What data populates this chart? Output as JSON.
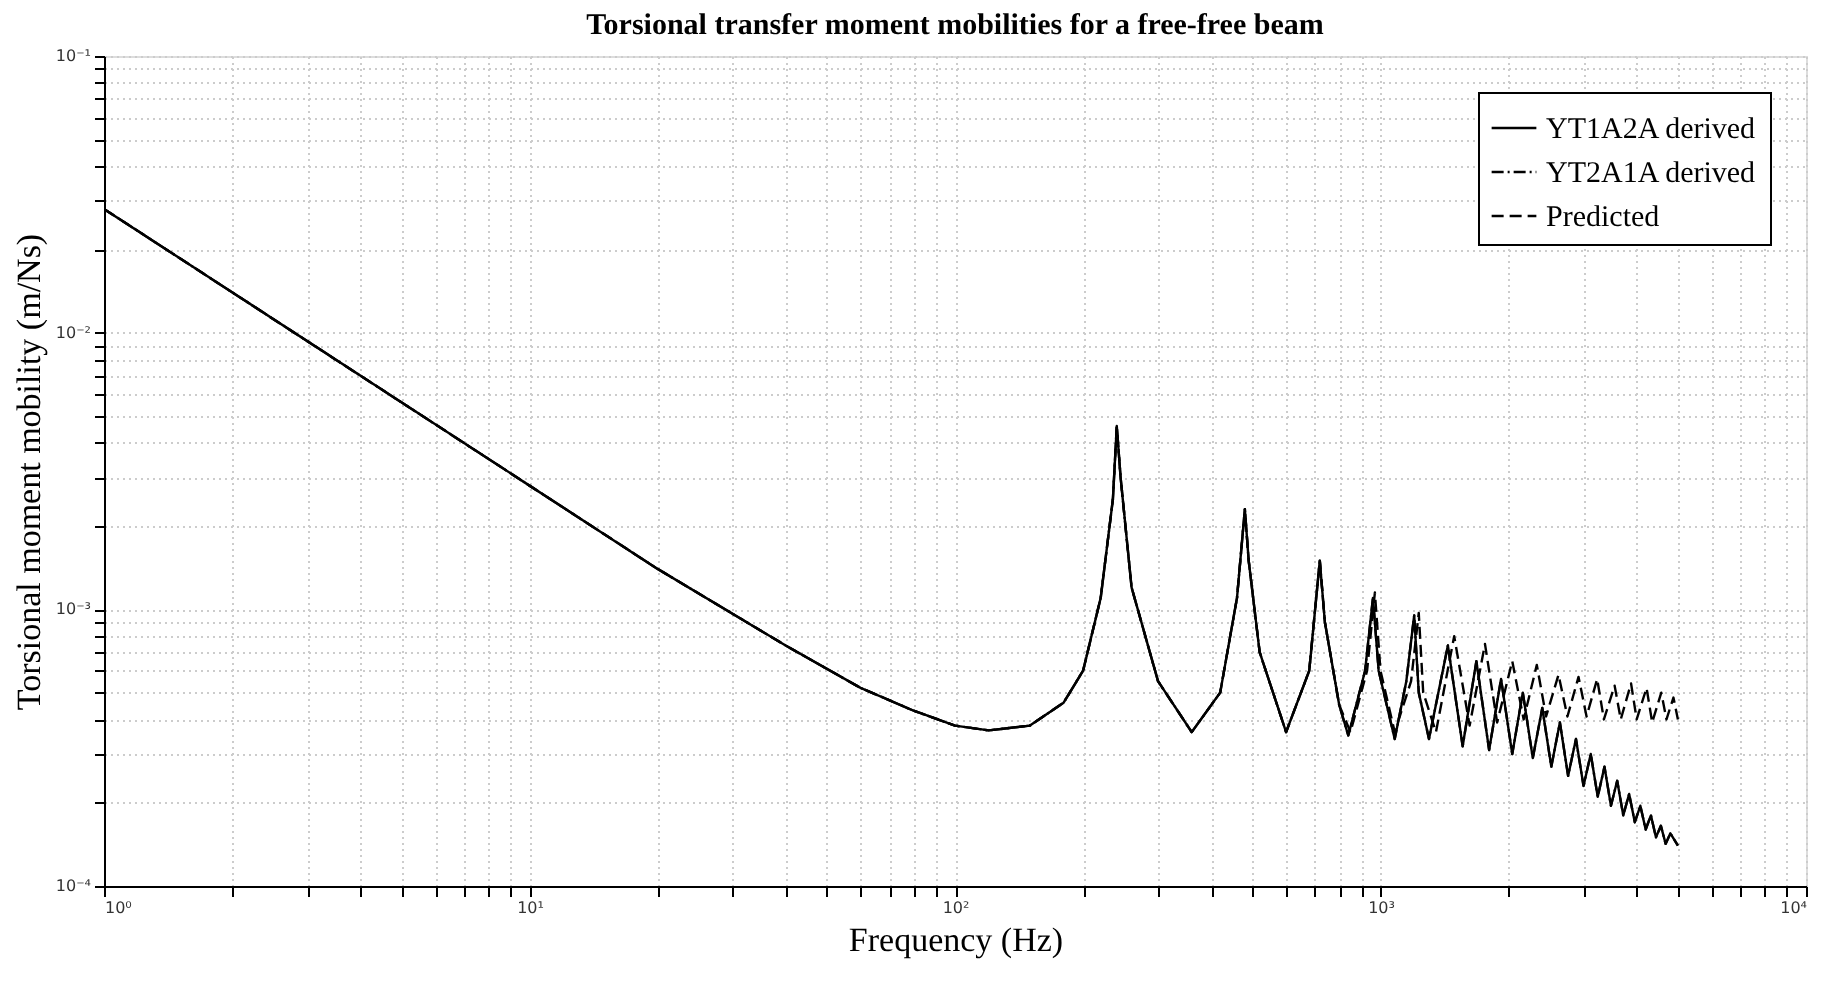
{
  "chart_data": {
    "type": "line",
    "title": "Torsional transfer moment mobilities for a free-free beam",
    "xlabel": "Frequency (Hz)",
    "ylabel": "Torsional moment mobility (m/Ns)",
    "log": "xy",
    "grid": true,
    "legend": "top right",
    "xlim": [
      1,
      10000
    ],
    "ylim": [
      0.0001,
      0.1
    ],
    "xticks": [
      {
        "value": 1,
        "label": "10⁰"
      },
      {
        "value": 2,
        "label": null
      },
      {
        "value": 3,
        "label": null
      },
      {
        "value": 4,
        "label": null
      },
      {
        "value": 5,
        "label": null
      },
      {
        "value": 6,
        "label": null
      },
      {
        "value": 7,
        "label": null
      },
      {
        "value": 8,
        "label": null
      },
      {
        "value": 9,
        "label": null
      },
      {
        "value": 10,
        "label": "10¹"
      },
      {
        "value": 20,
        "label": null
      },
      {
        "value": 30,
        "label": null
      },
      {
        "value": 40,
        "label": null
      },
      {
        "value": 50,
        "label": null
      },
      {
        "value": 60,
        "label": null
      },
      {
        "value": 70,
        "label": null
      },
      {
        "value": 80,
        "label": null
      },
      {
        "value": 90,
        "label": null
      },
      {
        "value": 100,
        "label": "10²"
      },
      {
        "value": 200,
        "label": null
      },
      {
        "value": 300,
        "label": null
      },
      {
        "value": 400,
        "label": null
      },
      {
        "value": 500,
        "label": null
      },
      {
        "value": 600,
        "label": null
      },
      {
        "value": 700,
        "label": null
      },
      {
        "value": 800,
        "label": null
      },
      {
        "value": 900,
        "label": null
      },
      {
        "value": 1000,
        "label": "10³"
      },
      {
        "value": 2000,
        "label": null
      },
      {
        "value": 3000,
        "label": null
      },
      {
        "value": 4000,
        "label": null
      },
      {
        "value": 5000,
        "label": null
      },
      {
        "value": 6000,
        "label": null
      },
      {
        "value": 7000,
        "label": null
      },
      {
        "value": 8000,
        "label": null
      },
      {
        "value": 9000,
        "label": null
      },
      {
        "value": 10000,
        "label": "10⁴"
      }
    ],
    "yticks": [
      {
        "value": 0.0001,
        "label": "10⁻⁴"
      },
      {
        "value": 0.0002,
        "label": null
      },
      {
        "value": 0.0003,
        "label": null
      },
      {
        "value": 0.0004,
        "label": null
      },
      {
        "value": 0.0005,
        "label": null
      },
      {
        "value": 0.0006,
        "label": null
      },
      {
        "value": 0.0007,
        "label": null
      },
      {
        "value": 0.0008,
        "label": null
      },
      {
        "value": 0.0009,
        "label": null
      },
      {
        "value": 0.001,
        "label": "10⁻³"
      },
      {
        "value": 0.002,
        "label": null
      },
      {
        "value": 0.003,
        "label": null
      },
      {
        "value": 0.004,
        "label": null
      },
      {
        "value": 0.005,
        "label": null
      },
      {
        "value": 0.006,
        "label": null
      },
      {
        "value": 0.007,
        "label": null
      },
      {
        "value": 0.008,
        "label": null
      },
      {
        "value": 0.009,
        "label": null
      },
      {
        "value": 0.01,
        "label": "10⁻²"
      },
      {
        "value": 0.02,
        "label": null
      },
      {
        "value": 0.03,
        "label": null
      },
      {
        "value": 0.04,
        "label": null
      },
      {
        "value": 0.05,
        "label": null
      },
      {
        "value": 0.06,
        "label": null
      },
      {
        "value": 0.07,
        "label": null
      },
      {
        "value": 0.08,
        "label": null
      },
      {
        "value": 0.09,
        "label": null
      },
      {
        "value": 0.1,
        "label": "10⁻¹"
      }
    ],
    "series": [
      {
        "name": "YT1A2A derived",
        "color": "#000000",
        "line_style": "solid",
        "x": [
          1,
          2,
          5,
          10,
          20,
          40,
          60,
          80,
          100,
          120,
          150,
          180,
          200,
          220,
          235,
          240,
          245,
          260,
          300,
          360,
          420,
          460,
          480,
          490,
          520,
          600,
          680,
          720,
          740,
          800,
          840,
          920,
          960,
          990,
          1080,
          1150,
          1200,
          1230,
          1300,
          1440,
          1560,
          1680,
          1800,
          1920,
          2040,
          2160,
          2280,
          2400,
          2520,
          2640,
          2760,
          2880,
          3000,
          3120,
          3240,
          3360,
          3480,
          3600,
          3720,
          3840,
          3960,
          4080,
          4200,
          4320,
          4440,
          4560,
          4680,
          4800,
          5000
        ],
        "values": [
          0.028,
          0.014,
          0.0056,
          0.0028,
          0.0014,
          0.00074,
          0.00052,
          0.00043,
          0.00038,
          0.000365,
          0.00038,
          0.00046,
          0.0006,
          0.0011,
          0.0025,
          0.0046,
          0.003,
          0.0012,
          0.00055,
          0.00036,
          0.0005,
          0.0011,
          0.0023,
          0.0015,
          0.0007,
          0.00036,
          0.0006,
          0.0015,
          0.0009,
          0.00045,
          0.00035,
          0.0006,
          0.0011,
          0.0006,
          0.00034,
          0.00055,
          0.00095,
          0.0005,
          0.00034,
          0.00074,
          0.00032,
          0.00065,
          0.00031,
          0.00056,
          0.0003,
          0.0005,
          0.00029,
          0.00044,
          0.00027,
          0.00039,
          0.00025,
          0.00034,
          0.00023,
          0.0003,
          0.00021,
          0.00027,
          0.000195,
          0.00024,
          0.00018,
          0.000215,
          0.00017,
          0.000195,
          0.00016,
          0.00018,
          0.00015,
          0.000165,
          0.000142,
          0.000155,
          0.00014
        ]
      },
      {
        "name": "YT2A1A derived",
        "color": "#000000",
        "line_style": "dashdot",
        "x": [
          1,
          2,
          5,
          10,
          20,
          40,
          60,
          80,
          100,
          120,
          150,
          180,
          200,
          220,
          235,
          240,
          245,
          260,
          300,
          360,
          420,
          460,
          480,
          490,
          520,
          600,
          680,
          720,
          740,
          800,
          840,
          920,
          960,
          990,
          1080,
          1150,
          1200,
          1230,
          1300,
          1440,
          1560,
          1680,
          1800,
          1920,
          2040,
          2160,
          2280,
          2400,
          2520,
          2640,
          2760,
          2880,
          3000,
          3120,
          3240,
          3360,
          3480,
          3600,
          3720,
          3840,
          3960,
          4080,
          4200,
          4320,
          4440,
          4560,
          4680,
          4800,
          5000
        ],
        "values": [
          0.028,
          0.014,
          0.0056,
          0.0028,
          0.0014,
          0.00074,
          0.00052,
          0.00043,
          0.00038,
          0.000365,
          0.00038,
          0.00046,
          0.0006,
          0.0011,
          0.0025,
          0.0046,
          0.003,
          0.0012,
          0.00055,
          0.00036,
          0.0005,
          0.0011,
          0.0023,
          0.0015,
          0.0007,
          0.00036,
          0.0006,
          0.0015,
          0.0009,
          0.00045,
          0.00035,
          0.0006,
          0.0011,
          0.0006,
          0.00034,
          0.00055,
          0.00095,
          0.0005,
          0.00034,
          0.00074,
          0.00032,
          0.00065,
          0.00031,
          0.00056,
          0.0003,
          0.0005,
          0.00029,
          0.00044,
          0.00027,
          0.00039,
          0.00025,
          0.00034,
          0.00023,
          0.0003,
          0.00021,
          0.00027,
          0.000195,
          0.00024,
          0.00018,
          0.000215,
          0.00017,
          0.000195,
          0.00016,
          0.00018,
          0.00015,
          0.000165,
          0.000142,
          0.000155,
          0.00014
        ]
      },
      {
        "name": "Predicted",
        "color": "#000000",
        "line_style": "dashed",
        "x": [
          1,
          2,
          5,
          10,
          20,
          40,
          60,
          80,
          100,
          120,
          150,
          180,
          200,
          220,
          235,
          240,
          245,
          260,
          300,
          360,
          420,
          460,
          480,
          490,
          520,
          600,
          680,
          720,
          740,
          800,
          850,
          930,
          970,
          1000,
          1080,
          1180,
          1230,
          1260,
          1350,
          1490,
          1620,
          1760,
          1880,
          2040,
          2170,
          2330,
          2450,
          2620,
          2750,
          2920,
          3050,
          3230,
          3350,
          3550,
          3670,
          3880,
          4000,
          4220,
          4350,
          4570,
          4700,
          4880,
          5000
        ],
        "values": [
          0.028,
          0.014,
          0.0056,
          0.0028,
          0.0014,
          0.00074,
          0.00052,
          0.00043,
          0.00038,
          0.000365,
          0.00038,
          0.00046,
          0.0006,
          0.0011,
          0.0025,
          0.0046,
          0.003,
          0.0012,
          0.00055,
          0.00036,
          0.0005,
          0.0011,
          0.0023,
          0.0015,
          0.0007,
          0.00036,
          0.0006,
          0.0015,
          0.0009,
          0.00045,
          0.00036,
          0.0006,
          0.00115,
          0.0006,
          0.00036,
          0.00055,
          0.00097,
          0.0005,
          0.00036,
          0.0008,
          0.00038,
          0.00075,
          0.00039,
          0.00065,
          0.0004,
          0.00063,
          0.00041,
          0.00058,
          0.00041,
          0.00057,
          0.00041,
          0.00056,
          0.0004,
          0.00053,
          0.0004,
          0.00054,
          0.0004,
          0.00052,
          0.00039,
          0.0005,
          0.0004,
          0.00048,
          0.0004
        ]
      }
    ]
  }
}
